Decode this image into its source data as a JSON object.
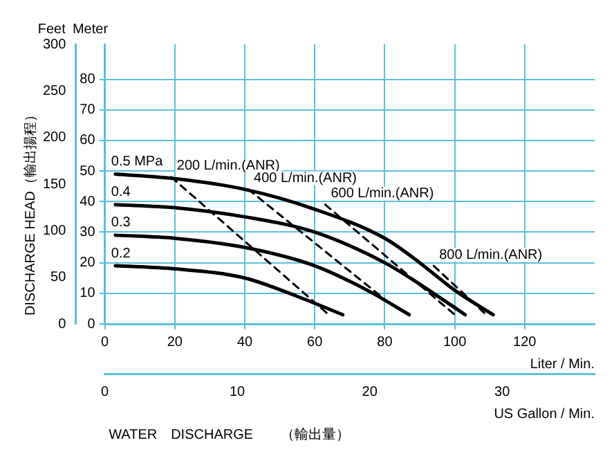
{
  "chart_data": {
    "type": "line",
    "xlabel": "Liter / Min.",
    "x2label": "US Gallon / Min.",
    "ylabel": "Meter",
    "y2label": "Feet",
    "annotations": [
      "DISCHARGE HEAD（輸出揚程）",
      "WATER　DISCHARGE　　（輸出量）"
    ],
    "xlim": [
      0,
      140
    ],
    "xticks": [
      0,
      20,
      40,
      60,
      80,
      100,
      120
    ],
    "x2lim": [
      0,
      36.99
    ],
    "x2ticks": [
      0,
      10,
      20,
      30
    ],
    "ylim": [
      0,
      91.44
    ],
    "yticks": [
      0,
      10,
      20,
      30,
      40,
      50,
      60,
      70,
      80
    ],
    "y2lim": [
      0,
      300
    ],
    "y2ticks": [
      0,
      50,
      100,
      150,
      200,
      250,
      300
    ],
    "grid": true,
    "marker": "none",
    "series": [
      {
        "name": "0.5 MPa",
        "color": "#000000",
        "line_style": "solid",
        "x": [
          3,
          20,
          40,
          60,
          80,
          90,
          100,
          111
        ],
        "values": [
          49,
          47.5,
          44,
          37.5,
          28,
          20,
          11,
          3
        ]
      },
      {
        "name": "0.4",
        "color": "#000000",
        "line_style": "solid",
        "x": [
          3,
          20,
          40,
          60,
          80,
          90,
          103
        ],
        "values": [
          39,
          38,
          35,
          30,
          20,
          13,
          3
        ]
      },
      {
        "name": "0.3",
        "color": "#000000",
        "line_style": "solid",
        "x": [
          3,
          20,
          40,
          60,
          75,
          87
        ],
        "values": [
          29,
          28,
          25,
          19,
          11,
          3
        ]
      },
      {
        "name": "0.2",
        "color": "#000000",
        "line_style": "solid",
        "x": [
          3,
          20,
          40,
          55,
          68
        ],
        "values": [
          19,
          18,
          15,
          9,
          3
        ]
      },
      {
        "name": "200 L/min.(ANR)",
        "color": "#000000",
        "line_style": "dashed",
        "x": [
          19,
          64
        ],
        "values": [
          48,
          3
        ]
      },
      {
        "name": "400 L/min.(ANR)",
        "color": "#000000",
        "line_style": "dashed",
        "x": [
          41,
          80
        ],
        "values": [
          44,
          8
        ]
      },
      {
        "name": "600 L/min.(ANR)",
        "color": "#000000",
        "line_style": "dashed",
        "x": [
          63,
          100
        ],
        "values": [
          39,
          3
        ]
      },
      {
        "name": "800 L/min.(ANR)",
        "color": "#000000",
        "line_style": "dashed",
        "x": [
          94,
          109
        ],
        "values": [
          19,
          3
        ]
      }
    ]
  }
}
